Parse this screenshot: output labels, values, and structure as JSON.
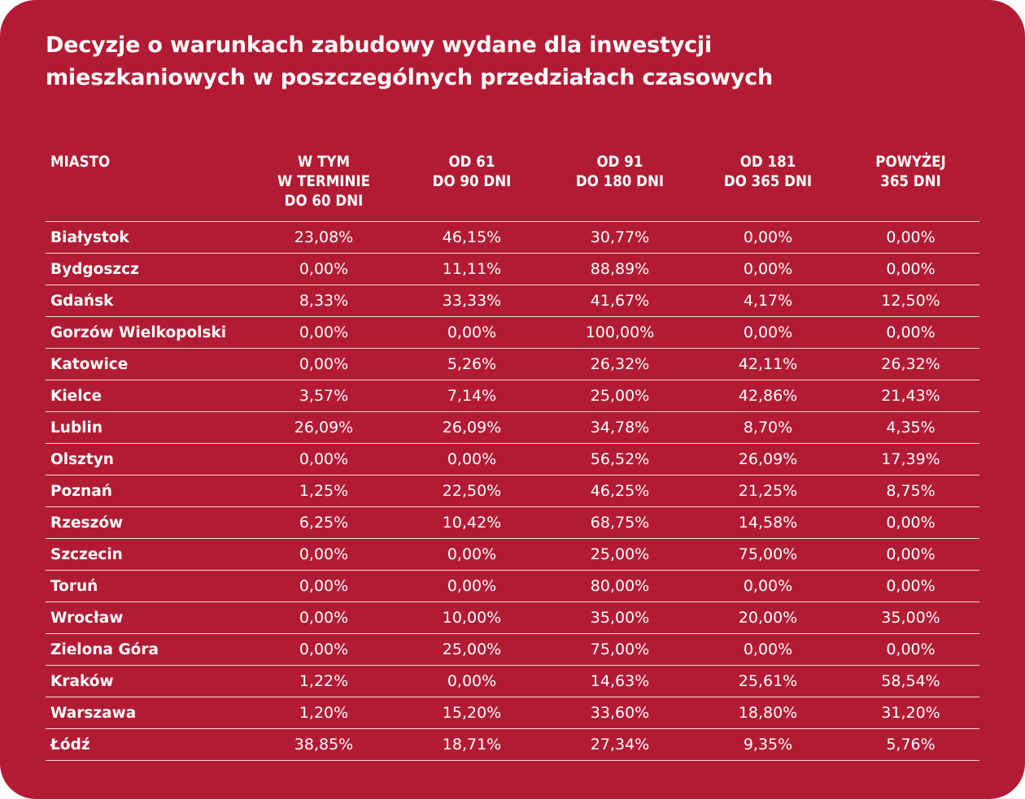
{
  "chart_data": {
    "type": "table",
    "title": "Decyzje o warunkach zabudowy wydane dla inwestycji\nmieszkaniowych w poszczególnych przedziałach czasowych",
    "columns": [
      "MIASTO",
      "W TYM\nW TERMINIE\nDO 60 DNI",
      "OD 61\nDO 90 DNI",
      "OD 91\nDO 180 DNI",
      "OD 181\nDO 365 DNI",
      "POWYŻEJ\n365 DNI"
    ],
    "rows": [
      [
        "Białystok",
        "23,08%",
        "46,15%",
        "30,77%",
        "0,00%",
        "0,00%"
      ],
      [
        "Bydgoszcz",
        "0,00%",
        "11,11%",
        "88,89%",
        "0,00%",
        "0,00%"
      ],
      [
        "Gdańsk",
        "8,33%",
        "33,33%",
        "41,67%",
        "4,17%",
        "12,50%"
      ],
      [
        "Gorzów Wielkopolski",
        "0,00%",
        "0,00%",
        "100,00%",
        "0,00%",
        "0,00%"
      ],
      [
        "Katowice",
        "0,00%",
        "5,26%",
        "26,32%",
        "42,11%",
        "26,32%"
      ],
      [
        "Kielce",
        "3,57%",
        "7,14%",
        "25,00%",
        "42,86%",
        "21,43%"
      ],
      [
        "Lublin",
        "26,09%",
        "26,09%",
        "34,78%",
        "8,70%",
        "4,35%"
      ],
      [
        "Olsztyn",
        "0,00%",
        "0,00%",
        "56,52%",
        "26,09%",
        "17,39%"
      ],
      [
        "Poznań",
        "1,25%",
        "22,50%",
        "46,25%",
        "21,25%",
        "8,75%"
      ],
      [
        "Rzeszów",
        "6,25%",
        "10,42%",
        "68,75%",
        "14,58%",
        "0,00%"
      ],
      [
        "Szczecin",
        "0,00%",
        "0,00%",
        "25,00%",
        "75,00%",
        "0,00%"
      ],
      [
        "Toruń",
        "0,00%",
        "0,00%",
        "80,00%",
        "0,00%",
        "0,00%"
      ],
      [
        "Wrocław",
        "0,00%",
        "10,00%",
        "35,00%",
        "20,00%",
        "35,00%"
      ],
      [
        "Zielona Góra",
        "0,00%",
        "25,00%",
        "75,00%",
        "0,00%",
        "0,00%"
      ],
      [
        "Kraków",
        "1,22%",
        "0,00%",
        "14,63%",
        "25,61%",
        "58,54%"
      ],
      [
        "Warszawa",
        "1,20%",
        "15,20%",
        "33,60%",
        "18,80%",
        "31,20%"
      ],
      [
        "Łódź",
        "38,85%",
        "18,71%",
        "27,34%",
        "9,35%",
        "5,76%"
      ]
    ]
  },
  "colors": {
    "background": "#b31b34",
    "text": "#ffffff"
  }
}
